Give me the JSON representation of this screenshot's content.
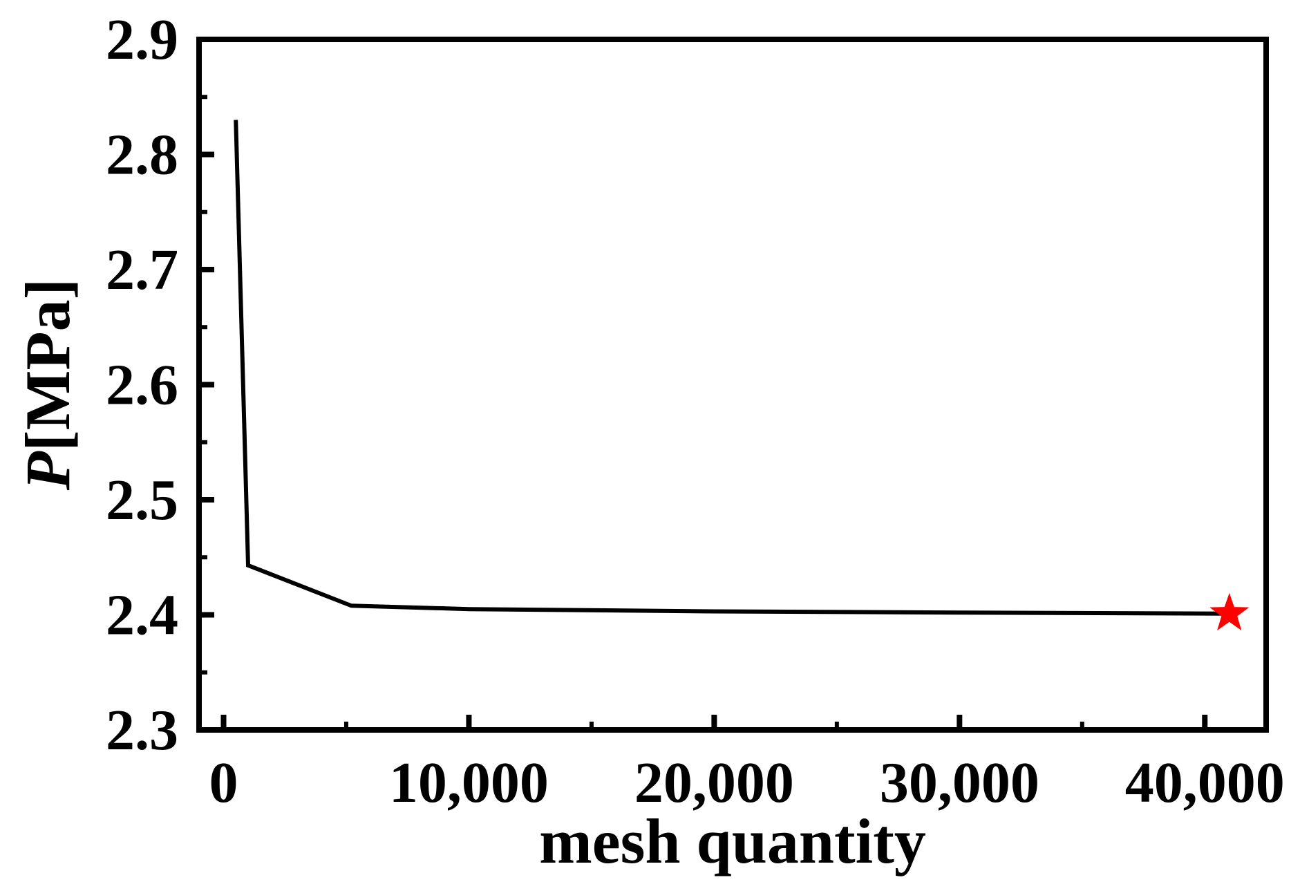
{
  "chart_data": {
    "type": "line",
    "title": "",
    "xlabel": "mesh quantity",
    "ylabel": {
      "symbol": "P",
      "unit": "[MPa]"
    },
    "xlim": [
      -1000,
      42500
    ],
    "ylim": [
      2.3,
      2.9
    ],
    "x_ticks": [
      0,
      10000,
      20000,
      30000,
      40000
    ],
    "x_tick_labels": [
      "0",
      "10,000",
      "20,000",
      "30,000",
      "40,000"
    ],
    "y_ticks": [
      2.3,
      2.4,
      2.5,
      2.6,
      2.7,
      2.8,
      2.9
    ],
    "y_tick_labels": [
      "2.3",
      "2.4",
      "2.5",
      "2.6",
      "2.7",
      "2.8",
      "2.9"
    ],
    "grid": false,
    "series": [
      {
        "color": "#000000",
        "points": [
          {
            "x": 500,
            "y": 2.83
          },
          {
            "x": 1000,
            "y": 2.443
          },
          {
            "x": 5200,
            "y": 2.408
          },
          {
            "x": 10000,
            "y": 2.405
          },
          {
            "x": 20000,
            "y": 2.403
          },
          {
            "x": 30000,
            "y": 2.402
          },
          {
            "x": 41000,
            "y": 2.401
          }
        ]
      }
    ],
    "marker": {
      "shape": "star",
      "color": "#ff0000",
      "x": 41000,
      "y": 2.401
    }
  }
}
